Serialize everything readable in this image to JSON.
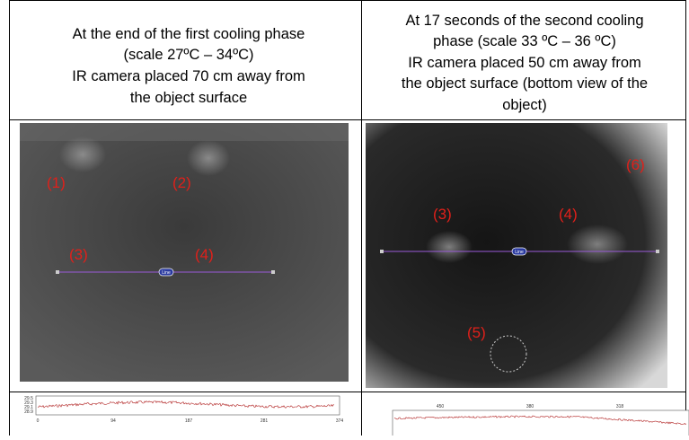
{
  "header": {
    "left": [
      "At the end of the first cooling phase",
      "(scale 27ºC – 34ºC)",
      "IR camera placed 70 cm away from",
      "the object surface"
    ],
    "right": [
      "At 17 seconds of the second cooling",
      "phase (scale 33 ºC – 36 ºC)",
      "IR camera placed 50 cm away from",
      "the object surface (bottom view of the",
      "object)"
    ]
  },
  "images": {
    "left": {
      "labels": [
        "(1)",
        "(2)",
        "(3)",
        "(4)"
      ],
      "line_label": "Line"
    },
    "right": {
      "labels": [
        "(6)",
        "(3)",
        "(4)",
        "(5)"
      ],
      "line_label": "Line"
    }
  },
  "plots": {
    "left": {
      "xticks": [
        "0",
        "94",
        "187",
        "281",
        "374"
      ],
      "yticks": [
        "29.5",
        "29.3",
        "29.1",
        "28.9"
      ]
    },
    "right": {
      "xticks": [
        "450",
        "380",
        "318"
      ]
    }
  }
}
